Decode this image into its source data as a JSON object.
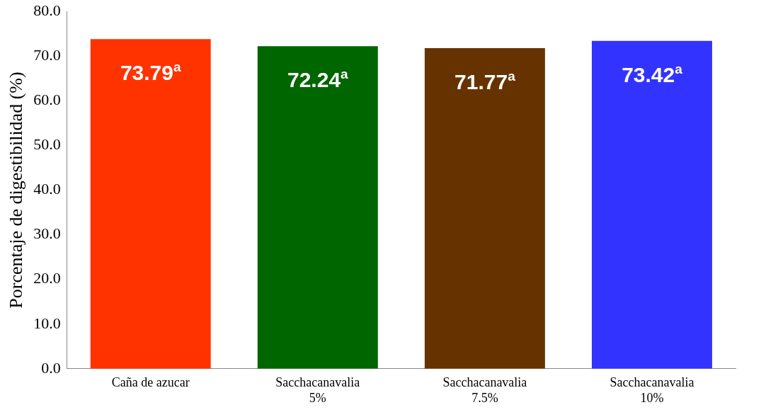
{
  "chart_data": {
    "type": "bar",
    "ylabel": "Porcentaje de digestibilidad (%)",
    "categories": [
      "Caña de azucar",
      "Sacchacanavalia 5%",
      "Sacchacanavalia 7.5%",
      "Sacchacanavalia 10%"
    ],
    "values": [
      73.79,
      72.24,
      71.77,
      73.42
    ],
    "colors": [
      "#ff3300",
      "#006600",
      "#663300",
      "#3333ff"
    ],
    "value_labels": [
      "73.79$^{a}$",
      "72.24$^{a}$",
      "71.77$^{a}$",
      "73.42$^{a}$"
    ],
    "ylim": [
      0,
      80
    ],
    "yticks": [
      {
        "value": 0,
        "label": "0.0"
      },
      {
        "value": 10,
        "label": "10.0"
      },
      {
        "value": 20,
        "label": "20.0"
      },
      {
        "value": 30,
        "label": "30.0"
      },
      {
        "value": 40,
        "label": "40.0"
      },
      {
        "value": 50,
        "label": "50.0"
      },
      {
        "value": 60,
        "label": "60.0"
      },
      {
        "value": 70,
        "label": "70.0"
      },
      {
        "value": 80,
        "label": "80.0"
      }
    ],
    "grid": false,
    "legend": false
  }
}
